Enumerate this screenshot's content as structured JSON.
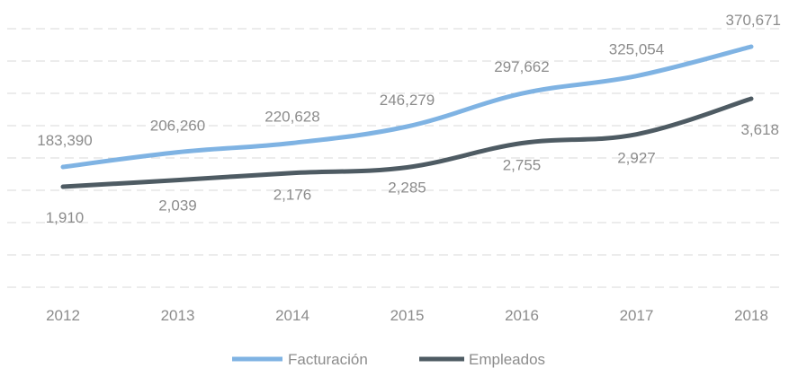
{
  "chart_data": {
    "type": "line",
    "title": "",
    "xlabel": "",
    "ylabel": "",
    "categories": [
      "2012",
      "2013",
      "2014",
      "2015",
      "2016",
      "2017",
      "2018"
    ],
    "series": [
      {
        "name": "Facturación",
        "color": "#7fb3e3",
        "values": [
          183390,
          206260,
          220628,
          246279,
          297662,
          325054,
          370671
        ],
        "labels": [
          "183,390",
          "206,260",
          "220,628",
          "246,279",
          "297,662",
          "325,054",
          "370,671"
        ]
      },
      {
        "name": "Empleados",
        "color": "#4e5b63",
        "values": [
          1910,
          2039,
          2176,
          2285,
          2755,
          2927,
          3618
        ],
        "labels": [
          "1,910",
          "2,039",
          "2,176",
          "2,285",
          "2,755",
          "2,927",
          "3,618"
        ]
      }
    ],
    "grid": true,
    "legend": "bottom"
  }
}
